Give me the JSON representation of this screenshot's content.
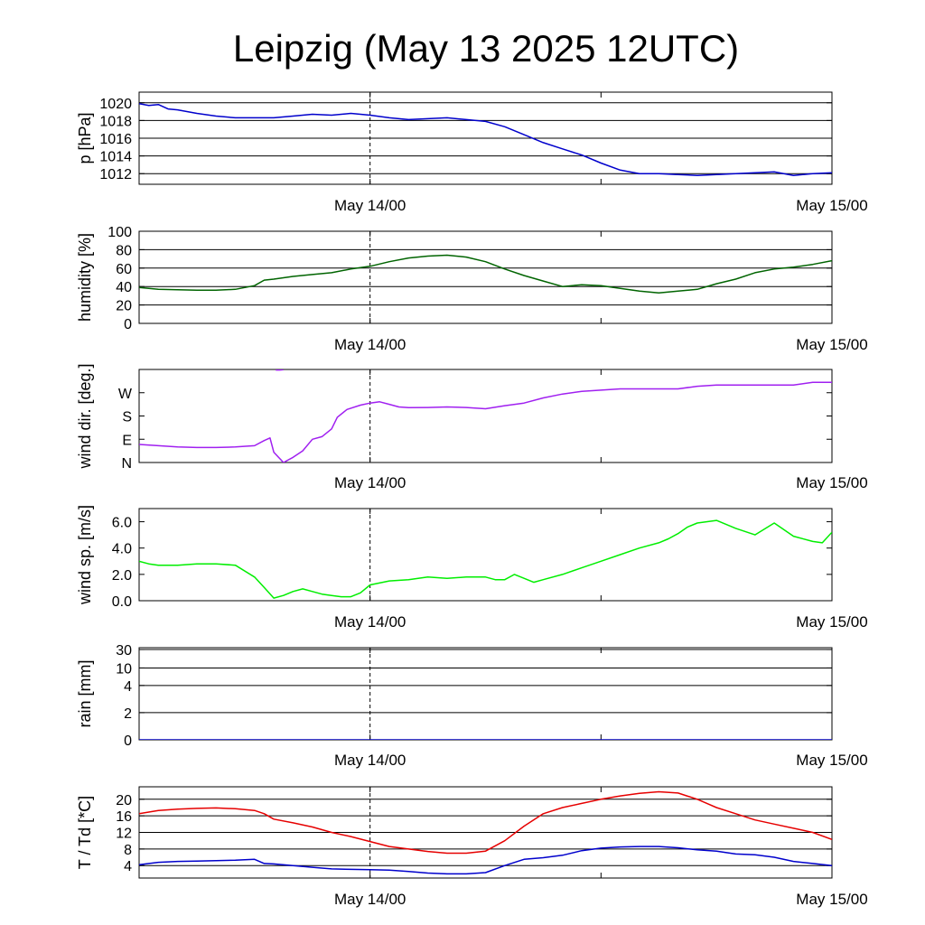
{
  "title": "Leipzig (May 13 2025 12UTC)",
  "x_tick_labels": [
    "May 14/00",
    "May 15/00"
  ],
  "chart_data": [
    {
      "type": "line",
      "id": "pressure",
      "ylabel": "p [hPa]",
      "ylim": [
        1010.8,
        1021.2
      ],
      "yticks": [
        1012,
        1014,
        1016,
        1018,
        1020
      ],
      "ytick_labels": [
        "1012",
        "1014",
        "1016",
        "1018",
        "1020"
      ],
      "grid": true,
      "series": [
        {
          "color": "#0000cc",
          "x": [
            0,
            0.5,
            1,
            1.5,
            2,
            3,
            4,
            5,
            6,
            7,
            8,
            9,
            10,
            11,
            12,
            13,
            14,
            15,
            16,
            17,
            18,
            19,
            20,
            21,
            22,
            23,
            24,
            25,
            26,
            27,
            28,
            29,
            30,
            31,
            32,
            33,
            34,
            35,
            36
          ],
          "y": [
            1019.9,
            1019.7,
            1019.8,
            1019.3,
            1019.2,
            1018.8,
            1018.5,
            1018.3,
            1018.3,
            1018.3,
            1018.5,
            1018.7,
            1018.6,
            1018.8,
            1018.6,
            1018.3,
            1018.1,
            1018.2,
            1018.3,
            1018.1,
            1017.9,
            1017.3,
            1016.4,
            1015.5,
            1014.8,
            1014.1,
            1013.2,
            1012.4,
            1012.0,
            1012.0,
            1011.9,
            1011.8,
            1011.9,
            1012.0,
            1012.1,
            1012.2,
            1011.8,
            1012.0,
            1012.1
          ]
        }
      ]
    },
    {
      "type": "line",
      "id": "humidity",
      "ylabel": "humidity [%]",
      "ylim": [
        0,
        100
      ],
      "yticks": [
        0,
        20,
        40,
        60,
        80,
        100
      ],
      "ytick_labels": [
        "0",
        "20",
        "40",
        "60",
        "80",
        "100"
      ],
      "grid": true,
      "series": [
        {
          "color": "#006400",
          "x": [
            0,
            1,
            2,
            3,
            4,
            5,
            6,
            6.5,
            7,
            8,
            9,
            10,
            11,
            12,
            13,
            14,
            15,
            16,
            17,
            18,
            19,
            20,
            21,
            22,
            23,
            24,
            25,
            26,
            27,
            28,
            29,
            30,
            31,
            32,
            33,
            34,
            35,
            36
          ],
          "y": [
            39,
            37,
            36.5,
            36,
            36,
            37,
            41,
            47,
            48,
            51,
            53,
            55,
            59,
            62,
            67,
            71,
            73,
            74,
            72,
            67,
            59,
            52,
            46,
            40,
            42,
            41,
            38,
            35,
            33,
            35,
            37,
            43,
            48,
            55,
            59,
            61,
            64,
            68
          ]
        }
      ]
    },
    {
      "type": "line",
      "id": "wind_direction",
      "ylabel": "wind dir. [deg.]",
      "ylim": [
        0,
        360
      ],
      "yticks": [
        0,
        90,
        180,
        270
      ],
      "ytick_labels": [
        "N",
        "E",
        "S",
        "W"
      ],
      "grid": false,
      "series": [
        {
          "color": "#a020f0",
          "x": [
            0,
            1,
            2,
            3,
            4,
            5,
            6,
            6.5,
            6.8,
            7,
            7.5,
            8,
            8.5,
            9,
            9.5,
            10,
            10.3,
            10.8,
            11.5,
            12,
            12.5,
            13,
            13.5,
            14,
            15,
            16,
            17,
            18,
            19,
            20,
            21,
            22,
            23,
            24,
            25,
            26,
            27,
            28,
            29,
            30,
            31,
            32,
            33,
            34,
            35,
            36
          ],
          "y": [
            70,
            65,
            60,
            58,
            58,
            60,
            65,
            85,
            95,
            40,
            0,
            20,
            45,
            90,
            100,
            130,
            175,
            205,
            222,
            230,
            235,
            225,
            215,
            212,
            213,
            215,
            213,
            208,
            220,
            230,
            250,
            265,
            275,
            280,
            285,
            285,
            285,
            285,
            295,
            300,
            300,
            300,
            300,
            300,
            310,
            310
          ]
        },
        {
          "color": "#a020f0",
          "x": [
            7.1,
            7.3,
            7.5
          ],
          "y": [
            358,
            358,
            359
          ]
        }
      ]
    },
    {
      "type": "line",
      "id": "wind_speed",
      "ylabel": "wind sp. [m/s]",
      "ylim": [
        0,
        7
      ],
      "yticks": [
        0,
        2,
        4,
        6
      ],
      "ytick_labels": [
        "0.0",
        "2.0",
        "4.0",
        "6.0"
      ],
      "grid": false,
      "series": [
        {
          "color": "#00ee00",
          "x": [
            0,
            0.5,
            1,
            2,
            3,
            4,
            5,
            6,
            6.5,
            7,
            7.5,
            8,
            8.5,
            9,
            9.5,
            10,
            10.5,
            11,
            11.5,
            12,
            13,
            14,
            15,
            16,
            17,
            18,
            18.5,
            19,
            19.5,
            20,
            20.5,
            21,
            22,
            23,
            24,
            25,
            26,
            27,
            27.5,
            28,
            28.5,
            29,
            30,
            31,
            32,
            33,
            34,
            35,
            35.5,
            36
          ],
          "y": [
            3.0,
            2.8,
            2.7,
            2.7,
            2.8,
            2.8,
            2.7,
            1.8,
            1.0,
            0.2,
            0.4,
            0.7,
            0.9,
            0.7,
            0.5,
            0.4,
            0.3,
            0.3,
            0.6,
            1.2,
            1.5,
            1.6,
            1.8,
            1.7,
            1.8,
            1.8,
            1.6,
            1.6,
            2.0,
            1.7,
            1.4,
            1.6,
            2.0,
            2.5,
            3.0,
            3.5,
            4.0,
            4.4,
            4.7,
            5.1,
            5.6,
            5.9,
            6.1,
            5.5,
            5.0,
            5.9,
            4.9,
            4.5,
            4.4,
            5.2
          ]
        }
      ]
    },
    {
      "type": "line",
      "id": "rain",
      "ylabel": "rain [mm]",
      "ylim": [
        0,
        30
      ],
      "yticks": [
        0,
        2,
        4,
        10,
        30
      ],
      "ytick_labels": [
        "0",
        "2",
        "4",
        "10",
        "30"
      ],
      "grid": true,
      "series": [
        {
          "color": "#0000cc",
          "x": [
            0,
            36
          ],
          "y": [
            0,
            0
          ]
        }
      ]
    },
    {
      "type": "line",
      "id": "temperature",
      "ylabel": "T / Td [*C]",
      "ylim": [
        1,
        23
      ],
      "yticks": [
        4,
        8,
        12,
        16,
        20
      ],
      "ytick_labels": [
        "4",
        "8",
        "12",
        "16",
        "20"
      ],
      "grid": true,
      "series": [
        {
          "color": "#e60000",
          "x": [
            0,
            1,
            2,
            3,
            4,
            5,
            6,
            6.5,
            7,
            8,
            9,
            10,
            11,
            12,
            13,
            14,
            15,
            16,
            17,
            18,
            19,
            20,
            21,
            22,
            23,
            24,
            25,
            26,
            27,
            28,
            29,
            30,
            31,
            32,
            33,
            34,
            35,
            36
          ],
          "y": [
            16.5,
            17.3,
            17.6,
            17.8,
            17.9,
            17.7,
            17.3,
            16.5,
            15.2,
            14.3,
            13.3,
            12.0,
            11.0,
            9.8,
            8.6,
            8.0,
            7.4,
            7.0,
            7.0,
            7.5,
            10.0,
            13.5,
            16.5,
            18.0,
            19.0,
            20.0,
            20.8,
            21.4,
            21.8,
            21.5,
            20.0,
            18.0,
            16.5,
            15.0,
            14.0,
            13.0,
            12.0,
            10.3
          ]
        },
        {
          "color": "#0000cc",
          "x": [
            0,
            1,
            2,
            3,
            4,
            5,
            6,
            6.5,
            7,
            8,
            9,
            10,
            11,
            12,
            13,
            14,
            15,
            16,
            17,
            18,
            19,
            20,
            21,
            22,
            23,
            24,
            25,
            26,
            27,
            28,
            29,
            30,
            31,
            32,
            33,
            34,
            35,
            36
          ],
          "y": [
            4.2,
            4.8,
            5.0,
            5.1,
            5.2,
            5.3,
            5.5,
            4.5,
            4.4,
            4.0,
            3.6,
            3.2,
            3.1,
            3.0,
            2.9,
            2.6,
            2.2,
            2.0,
            2.0,
            2.3,
            4.0,
            5.5,
            5.9,
            6.5,
            7.6,
            8.2,
            8.5,
            8.6,
            8.6,
            8.3,
            7.8,
            7.5,
            6.8,
            6.6,
            6.0,
            5.0,
            4.5,
            4.0
          ]
        }
      ]
    }
  ]
}
